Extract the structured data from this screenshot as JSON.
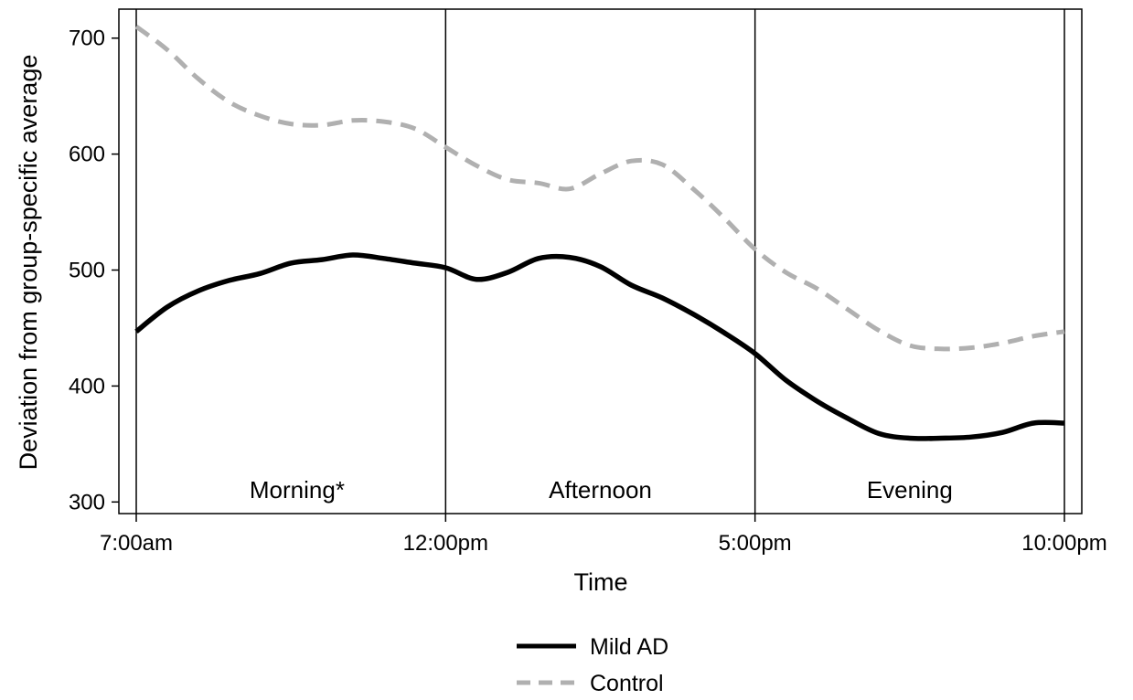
{
  "chart_data": {
    "type": "line",
    "xlabel": "Time",
    "ylabel": "Deviation from group-specific average",
    "x_ticks": [
      {
        "hour": 7,
        "label": "7:00am"
      },
      {
        "hour": 12,
        "label": "12:00pm"
      },
      {
        "hour": 17,
        "label": "5:00pm"
      },
      {
        "hour": 22,
        "label": "10:00pm"
      }
    ],
    "y_ticks": [
      300,
      400,
      500,
      600,
      700
    ],
    "xlim": [
      7,
      22
    ],
    "ylim": [
      290,
      725
    ],
    "vlines": [
      7,
      12,
      17,
      22
    ],
    "periods": [
      {
        "label": "Morning*",
        "hour": 9.6
      },
      {
        "label": "Afternoon",
        "hour": 14.5
      },
      {
        "label": "Evening",
        "hour": 19.5
      }
    ],
    "series": [
      {
        "name": "Mild AD",
        "color": "#000000",
        "dash": "solid",
        "x": [
          7.0,
          7.5,
          8.0,
          8.5,
          9.0,
          9.5,
          10.0,
          10.5,
          11.0,
          11.5,
          12.0,
          12.5,
          13.0,
          13.5,
          14.0,
          14.5,
          15.0,
          15.5,
          16.0,
          16.5,
          17.0,
          17.5,
          18.0,
          18.5,
          19.0,
          19.5,
          20.0,
          20.5,
          21.0,
          21.5,
          22.0
        ],
        "y": [
          447,
          468,
          482,
          491,
          497,
          506,
          509,
          513,
          510,
          506,
          502,
          492,
          498,
          510,
          511,
          503,
          487,
          476,
          462,
          446,
          428,
          405,
          387,
          372,
          359,
          355,
          355,
          356,
          360,
          368,
          368
        ]
      },
      {
        "name": "Control",
        "color": "#b0b0b0",
        "dash": "dashed",
        "x": [
          7.0,
          7.5,
          8.0,
          8.5,
          9.0,
          9.5,
          10.0,
          10.5,
          11.0,
          11.5,
          12.0,
          12.5,
          13.0,
          13.5,
          14.0,
          14.5,
          15.0,
          15.5,
          16.0,
          16.5,
          17.0,
          17.5,
          18.0,
          18.5,
          19.0,
          19.5,
          20.0,
          20.5,
          21.0,
          21.5,
          22.0
        ],
        "y": [
          710,
          690,
          665,
          645,
          633,
          626,
          625,
          629,
          628,
          622,
          606,
          590,
          578,
          575,
          570,
          583,
          594,
          591,
          570,
          545,
          518,
          498,
          484,
          466,
          448,
          435,
          432,
          433,
          437,
          443,
          447
        ]
      }
    ],
    "legend": {
      "position": "bottom-center",
      "entries": [
        "Mild AD",
        "Control"
      ]
    }
  }
}
